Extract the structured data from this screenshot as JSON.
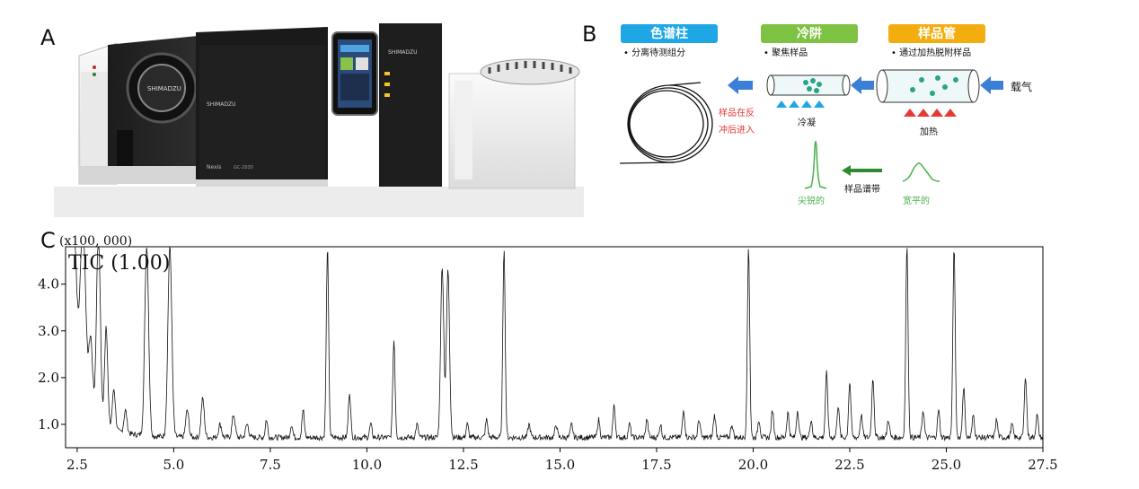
{
  "panels": {
    "a": "A",
    "b": "B",
    "c": "C"
  },
  "instrument": {
    "brand": "SHIMADZU",
    "model": "GC-2030",
    "series": "Nexis"
  },
  "flow": {
    "column": {
      "title": "色谱柱",
      "desc": "• 分离待测组分",
      "color": "#1ea7e4"
    },
    "trap": {
      "title": "冷阱",
      "desc": "• 聚焦样品",
      "color": "#7dc242"
    },
    "tube": {
      "title": "样品管",
      "desc": "• 通过加热脱附样品",
      "color": "#f4ad0f"
    },
    "carrier_gas": "载气",
    "reverse_1": "样品在反",
    "reverse_2": "冲后进入",
    "condense": "冷凝",
    "heat": "加热",
    "band": "样品谱带",
    "sharp": "尖锐的",
    "broad": "宽平的",
    "arrow_color": "#3b7fd6",
    "red_text_color": "#e53935",
    "green_color": "#48b04a"
  },
  "chart_data": {
    "type": "line",
    "multiplier": "(x100, 000)",
    "trace_label": "TIC (1.00)",
    "xlim": [
      2.2,
      27.5
    ],
    "ylim": [
      0.5,
      4.8
    ],
    "x_ticks": [
      "2.5",
      "5.0",
      "7.5",
      "10.0",
      "12.5",
      "15.0",
      "17.5",
      "20.0",
      "22.5",
      "25.0",
      "27.5"
    ],
    "y_ticks": [
      "1.0",
      "2.0",
      "3.0",
      "4.0"
    ],
    "baseline": 0.72,
    "peaks": [
      [
        2.4,
        4.8,
        0.08
      ],
      [
        2.65,
        4.8,
        0.07
      ],
      [
        2.85,
        2.4,
        0.05
      ],
      [
        3.05,
        4.8,
        0.05
      ],
      [
        3.25,
        2.9,
        0.04
      ],
      [
        3.45,
        1.6,
        0.04
      ],
      [
        3.75,
        1.2,
        0.04
      ],
      [
        4.3,
        4.8,
        0.05
      ],
      [
        4.9,
        4.8,
        0.05
      ],
      [
        5.35,
        1.3,
        0.04
      ],
      [
        5.75,
        1.55,
        0.04
      ],
      [
        6.2,
        1.0,
        0.04
      ],
      [
        6.55,
        1.2,
        0.04
      ],
      [
        6.9,
        1.0,
        0.04
      ],
      [
        7.4,
        1.1,
        0.03
      ],
      [
        8.05,
        1.0,
        0.03
      ],
      [
        8.35,
        1.3,
        0.03
      ],
      [
        8.98,
        4.8,
        0.03
      ],
      [
        9.55,
        1.7,
        0.03
      ],
      [
        10.1,
        1.0,
        0.03
      ],
      [
        10.7,
        2.8,
        0.03
      ],
      [
        11.3,
        1.0,
        0.03
      ],
      [
        11.95,
        4.4,
        0.04
      ],
      [
        12.1,
        4.3,
        0.04
      ],
      [
        12.6,
        1.0,
        0.03
      ],
      [
        13.1,
        1.1,
        0.03
      ],
      [
        13.55,
        4.8,
        0.03
      ],
      [
        14.2,
        1.0,
        0.03
      ],
      [
        14.9,
        1.0,
        0.03
      ],
      [
        15.3,
        1.0,
        0.03
      ],
      [
        16.0,
        1.1,
        0.03
      ],
      [
        16.4,
        1.4,
        0.03
      ],
      [
        16.8,
        1.0,
        0.03
      ],
      [
        17.25,
        1.1,
        0.03
      ],
      [
        17.6,
        1.0,
        0.03
      ],
      [
        18.2,
        1.3,
        0.03
      ],
      [
        18.6,
        1.1,
        0.03
      ],
      [
        19.0,
        1.2,
        0.03
      ],
      [
        19.45,
        1.0,
        0.03
      ],
      [
        19.88,
        4.8,
        0.03
      ],
      [
        20.15,
        1.1,
        0.03
      ],
      [
        20.5,
        1.3,
        0.03
      ],
      [
        20.9,
        1.25,
        0.03
      ],
      [
        21.15,
        1.3,
        0.03
      ],
      [
        21.5,
        1.1,
        0.03
      ],
      [
        21.9,
        2.1,
        0.03
      ],
      [
        22.2,
        1.4,
        0.03
      ],
      [
        22.5,
        1.9,
        0.03
      ],
      [
        22.8,
        1.2,
        0.03
      ],
      [
        23.1,
        2.0,
        0.03
      ],
      [
        23.5,
        1.1,
        0.03
      ],
      [
        23.98,
        4.8,
        0.03
      ],
      [
        24.4,
        1.3,
        0.03
      ],
      [
        24.8,
        1.3,
        0.03
      ],
      [
        25.2,
        4.8,
        0.03
      ],
      [
        25.45,
        1.8,
        0.03
      ],
      [
        25.7,
        1.2,
        0.03
      ],
      [
        26.3,
        1.1,
        0.03
      ],
      [
        26.7,
        1.0,
        0.03
      ],
      [
        27.05,
        2.05,
        0.03
      ],
      [
        27.35,
        1.2,
        0.03
      ]
    ]
  }
}
